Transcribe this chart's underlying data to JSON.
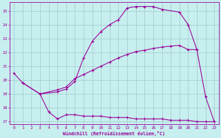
{
  "xlabel": "Windchill (Refroidissement éolien,°C)",
  "line_color": "#990099",
  "bg_color": "#c8efef",
  "grid_color": "#a0c8c8",
  "ylim": [
    16.8,
    25.6
  ],
  "xlim": [
    -0.5,
    23.5
  ],
  "yticks": [
    17,
    18,
    19,
    20,
    21,
    22,
    23,
    24,
    25
  ],
  "xticks": [
    0,
    1,
    2,
    3,
    4,
    5,
    6,
    7,
    8,
    9,
    10,
    11,
    12,
    13,
    14,
    15,
    16,
    17,
    18,
    19,
    20,
    21,
    22,
    23
  ],
  "s1_x": [
    0,
    1,
    3,
    4,
    5,
    6,
    7,
    8,
    9,
    10,
    11,
    12,
    13,
    14,
    15,
    16,
    17,
    18,
    19,
    20,
    21,
    22,
    23
  ],
  "s1_y": [
    20.5,
    19.8,
    19.0,
    17.7,
    17.2,
    17.5,
    17.5,
    17.4,
    17.4,
    17.4,
    17.3,
    17.3,
    17.3,
    17.2,
    17.2,
    17.2,
    17.2,
    17.1,
    17.1,
    17.1,
    17.0,
    17.0,
    17.0
  ],
  "s2_x": [
    3,
    5,
    6,
    7,
    8,
    9,
    10,
    11,
    12,
    13,
    14,
    15,
    16,
    17,
    18,
    19,
    20,
    21
  ],
  "s2_y": [
    19.0,
    19.3,
    19.5,
    20.1,
    20.4,
    20.7,
    21.0,
    21.3,
    21.6,
    21.85,
    22.05,
    22.15,
    22.28,
    22.38,
    22.45,
    22.5,
    22.2,
    22.2
  ],
  "s3_x": [
    1,
    3,
    5,
    6,
    7,
    8,
    9,
    10,
    11,
    12,
    13,
    14,
    15,
    16,
    17,
    19,
    20,
    21,
    22,
    23
  ],
  "s3_y": [
    19.8,
    19.0,
    19.15,
    19.35,
    19.9,
    21.6,
    22.8,
    23.5,
    24.0,
    24.35,
    25.2,
    25.3,
    25.3,
    25.3,
    25.1,
    24.9,
    24.0,
    22.2,
    18.8,
    17.0
  ]
}
